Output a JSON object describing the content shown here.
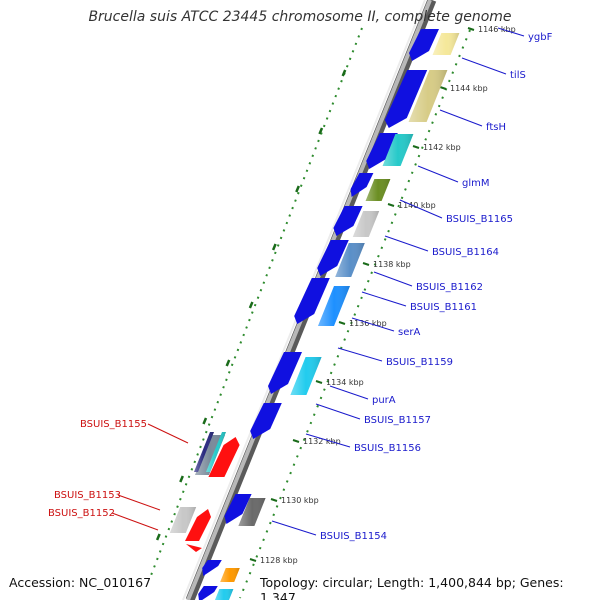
{
  "title": "Brucella suis ATCC 23445 chromosome II, complete genome",
  "accession": "Accession: NC_010167",
  "summary": "Topology: circular; Length: 1,400,844 bp; Genes: 1,347",
  "colors": {
    "backbone": "#8a8a8a",
    "forward_label": "#1a1acc",
    "reverse_label": "#cc1111",
    "gc_skew": "#2e8b2e",
    "cds_forward": "#1010e0",
    "cds_reverse": "#ff1010"
  },
  "kbp_ticks": [
    "1146 kbp",
    "1144 kbp",
    "1142 kbp",
    "1140 kbp",
    "1138 kbp",
    "1136 kbp",
    "1134 kbp",
    "1132 kbp",
    "1130 kbp",
    "1128 kbp"
  ],
  "forward_gene_labels": [
    "ygbF",
    "tilS",
    "ftsH",
    "glmM",
    "BSUIS_B1165",
    "BSUIS_B1164",
    "BSUIS_B1162",
    "BSUIS_B1161",
    "serA",
    "BSUIS_B1159",
    "purA",
    "BSUIS_B1157",
    "BSUIS_B1156",
    "BSUIS_B1154"
  ],
  "reverse_gene_labels": [
    "BSUIS_B1155",
    "BSUIS_B1153",
    "BSUIS_B1152"
  ]
}
